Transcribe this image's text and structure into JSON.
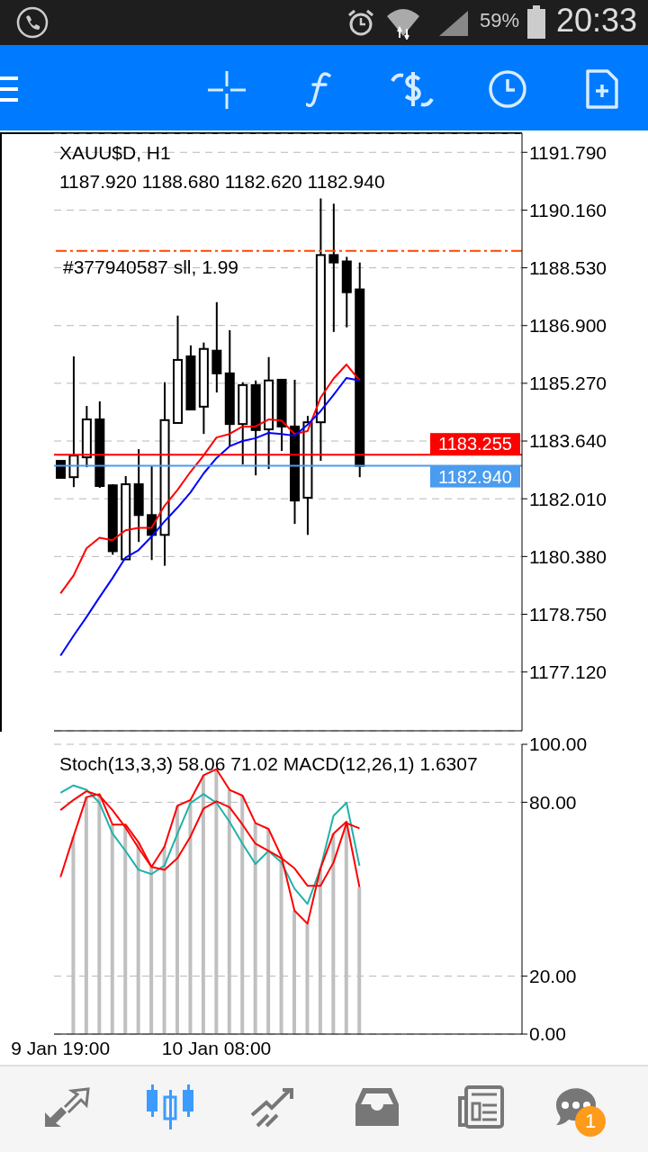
{
  "chart_data": [
    {
      "type": "candlestick",
      "title": "XAUU$D, H1",
      "subtitle": "1187.920 1188.680 1182.620 1182.940",
      "annotations": [
        "59%",
        "20:33",
        "1"
      ],
      "categories": [
        null,
        null,
        null,
        null,
        null,
        null,
        null,
        null,
        null,
        null,
        null,
        null,
        null,
        null,
        null,
        null,
        null,
        null,
        null,
        null,
        null,
        null,
        null,
        null,
        null,
        null,
        null,
        null,
        null,
        null,
        null,
        null,
        null,
        null,
        null,
        null
      ],
      "ohlc": [
        [
          1183.08,
          1183.08,
          1182.6,
          1182.6
        ],
        [
          1182.62,
          1186.03,
          1182.34,
          1183.23
        ],
        [
          1183.18,
          1184.63,
          1182.9,
          1184.25
        ],
        [
          1184.25,
          1184.76,
          1182.32,
          1182.37
        ],
        [
          1182.39,
          1182.42,
          1180.43,
          1180.53
        ],
        [
          1180.3,
          1182.65,
          1180.3,
          1182.42
        ],
        [
          1182.42,
          1183.41,
          1180.79,
          1181.55
        ],
        [
          1181.55,
          1182.93,
          1180.28,
          1180.99
        ],
        [
          1180.99,
          1185.3,
          1180.12,
          1184.23
        ],
        [
          1184.15,
          1187.18,
          1184.15,
          1185.93
        ],
        [
          1186.03,
          1186.34,
          1184.53,
          1184.53
        ],
        [
          1184.61,
          1186.42,
          1183.84,
          1186.24
        ],
        [
          1186.19,
          1187.56,
          1185.01,
          1185.55
        ],
        [
          1185.55,
          1186.77,
          1183.49,
          1184.12
        ],
        [
          1184.12,
          1185.3,
          1182.98,
          1185.22
        ],
        [
          1185.22,
          1185.35,
          1182.67,
          1183.95
        ],
        [
          1183.97,
          1186.01,
          1182.85,
          1185.35
        ],
        [
          1185.37,
          1185.37,
          1183.36,
          1184.05
        ],
        [
          1184.05,
          1185.37,
          1181.3,
          1181.96
        ],
        [
          1182.04,
          1184.35,
          1180.99,
          1184.17
        ],
        [
          1184.17,
          1190.49,
          1183.08,
          1188.89
        ],
        [
          1188.89,
          1190.34,
          1186.72,
          1188.68
        ],
        [
          1188.71,
          1188.84,
          1186.85,
          1187.84
        ],
        [
          1187.92,
          1188.68,
          1182.62,
          1182.94
        ],
        null,
        null,
        null,
        null,
        null,
        null,
        null,
        null,
        null,
        null,
        null,
        null
      ],
      "series": [
        {
          "type": "line",
          "color": "#ff0000",
          "values": [
            1179.34,
            1179.84,
            1180.61,
            1180.91,
            1180.84,
            1181.12,
            1181.19,
            1181.19,
            1181.81,
            1182.26,
            1182.77,
            1183.23,
            1183.74,
            1183.84,
            1184.05,
            1184.05,
            1184.25,
            1184.22,
            1183.84,
            1183.92,
            1184.86,
            1185.4,
            1185.8,
            1185.35,
            null,
            null,
            null,
            null,
            null,
            null,
            null,
            null,
            null,
            null,
            null,
            null
          ]
        },
        {
          "type": "line",
          "color": "#0000ff",
          "values": [
            1177.58,
            1178.14,
            1178.67,
            1179.23,
            1179.77,
            1180.35,
            1180.56,
            1180.94,
            1181.37,
            1181.76,
            1182.19,
            1182.72,
            1183.16,
            1183.49,
            1183.64,
            1183.72,
            1183.87,
            1183.84,
            1183.79,
            1184.1,
            1184.48,
            1184.94,
            1185.42,
            1185.35,
            null,
            null,
            null,
            null,
            null,
            null,
            null,
            null,
            null,
            null,
            null,
            null
          ]
        }
      ],
      "ylim": [
        1175.46,
        1192.33
      ],
      "yticks": [
        {
          "value": 1191.79,
          "label": "1191.790"
        },
        {
          "value": 1190.16,
          "label": "1190.160"
        },
        {
          "value": 1188.53,
          "label": "1188.530"
        },
        {
          "value": 1186.9,
          "label": "1186.900"
        },
        {
          "value": 1185.27,
          "label": "1185.270"
        },
        {
          "value": 1183.64,
          "label": "1183.640"
        },
        {
          "value": 1182.01,
          "label": "1182.010"
        },
        {
          "value": 1180.38,
          "label": "1180.380"
        },
        {
          "value": 1178.75,
          "label": "1178.750"
        },
        {
          "value": 1177.12,
          "label": "1177.120"
        }
      ],
      "grid": "y",
      "tick_labels": "y",
      "ref_lines": [
        {
          "axis": "y",
          "value": 1189.01,
          "label": "#377940587 sll, 1.99",
          "color": "#ff4500",
          "line_style": "dashed"
        },
        {
          "axis": "y",
          "value": 1183.255,
          "label": "1183.255",
          "color": "#ff0000",
          "line_style": "solid"
        },
        {
          "axis": "y",
          "value": 1182.94,
          "label": "1182.940",
          "color": "#4a9cf0",
          "line_style": "solid"
        }
      ]
    },
    {
      "type": "line",
      "title": "Stoch(13,3,3) 58.06 71.02 MACD(12,26,1) 1.6307",
      "categories": [
        "9 Jan 19:00",
        null,
        null,
        null,
        null,
        null,
        null,
        null,
        null,
        null,
        null,
        null,
        "10 Jan 08:00",
        null,
        null,
        null,
        null,
        null,
        null,
        null,
        null,
        null,
        null,
        null,
        null,
        null,
        null,
        null,
        null,
        null,
        null,
        null,
        null,
        null,
        null,
        null
      ],
      "series": [
        {
          "type": "line",
          "color": "#20b2aa",
          "values": [
            83.3,
            85.8,
            84.3,
            79.8,
            69.2,
            63.2,
            56.7,
            55.2,
            58.2,
            69.2,
            79.8,
            82.8,
            79.8,
            73.3,
            65.7,
            58.7,
            63.2,
            59.2,
            50.2,
            44.9,
            57.2,
            75.3,
            79.8,
            58.06,
            null,
            null,
            null,
            null,
            null,
            null,
            null,
            null,
            null,
            null,
            null,
            null
          ]
        },
        {
          "type": "line",
          "color": "#ff0000",
          "values": [
            77.3,
            80.8,
            83.8,
            82.3,
            77.3,
            71.3,
            64.2,
            57.7,
            56.7,
            60.7,
            68.2,
            77.8,
            80.3,
            78.3,
            72.3,
            65.7,
            63.2,
            60.7,
            57.2,
            51.2,
            51.2,
            59.2,
            72.8,
            71.02,
            null,
            null,
            null,
            null,
            null,
            null,
            null,
            null,
            null,
            null,
            null,
            null
          ]
        },
        {
          "type": "line",
          "color": "#ff0000",
          "values": [
            54.2,
            68.2,
            81.8,
            82.8,
            72.3,
            72.3,
            66.2,
            57.7,
            64.7,
            78.8,
            80.8,
            89.3,
            91.4,
            84.3,
            82.3,
            72.8,
            70.8,
            61.2,
            42.6,
            38.1,
            57.2,
            69.2,
            73.3,
            50.7,
            null,
            null,
            null,
            null,
            null,
            null,
            null,
            null,
            null,
            null,
            null,
            null
          ]
        },
        {
          "type": "bar",
          "color": "#c0c0c0",
          "values": [
            null,
            68.2,
            81.8,
            82.8,
            72.3,
            72.3,
            66.2,
            57.7,
            64.7,
            78.8,
            80.8,
            89.3,
            91.4,
            84.3,
            82.3,
            72.8,
            70.8,
            61.2,
            42.6,
            38.1,
            57.2,
            69.2,
            73.3,
            50.7,
            null,
            null,
            null,
            null,
            null,
            null,
            null,
            null,
            null,
            null,
            null,
            null
          ]
        }
      ],
      "ylim": [
        0,
        100
      ],
      "yticks": [
        {
          "value": 100,
          "label": "100.00"
        },
        {
          "value": 80,
          "label": "80.00"
        },
        {
          "value": 20,
          "label": "20.00"
        },
        {
          "value": 0,
          "label": "0.00"
        }
      ],
      "grid": "y"
    }
  ]
}
